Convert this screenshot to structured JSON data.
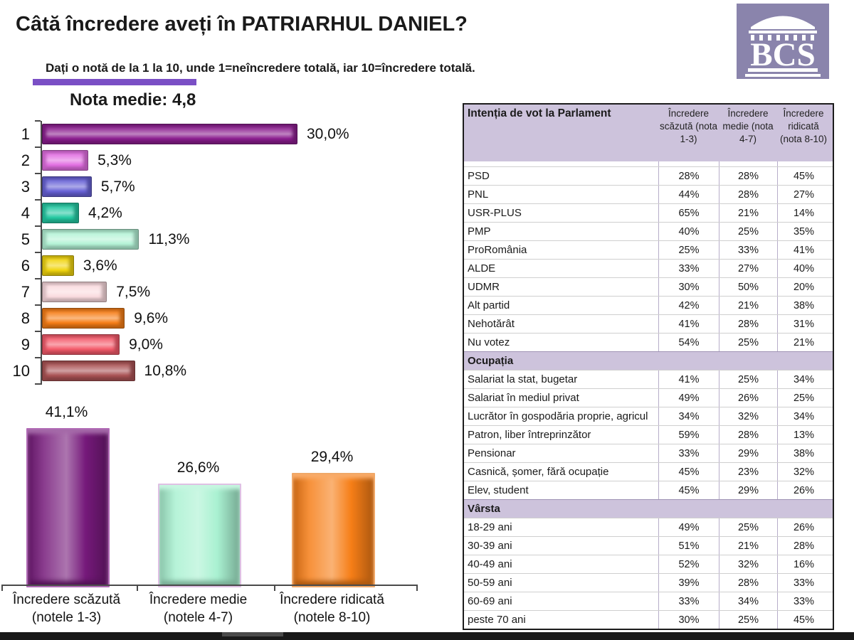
{
  "title": "Câtă încredere aveți în PATRIARHUL DANIEL?",
  "subtitle": "Dați o notă de la 1 la 10, unde 1=neîncredere totală, iar 10=încredere totală.",
  "accent_color": "#7A4FC5",
  "logo_text": "BCS",
  "average_note": "Nota medie: 4,8",
  "chart_data": [
    {
      "type": "bar",
      "orientation": "horizontal",
      "title": "Nota medie: 4,8",
      "categories": [
        "1",
        "2",
        "3",
        "4",
        "5",
        "6",
        "7",
        "8",
        "9",
        "10"
      ],
      "values": [
        30.0,
        5.3,
        5.7,
        4.2,
        11.3,
        3.6,
        7.5,
        9.6,
        9.0,
        10.8
      ],
      "labels": [
        "30,0%",
        "5,3%",
        "5,7%",
        "4,2%",
        "11,3%",
        "3,6%",
        "7,5%",
        "9,6%",
        "9,0%",
        "10,8%"
      ],
      "colors": [
        "#8B1E8F",
        "#E26FE2",
        "#6862D6",
        "#25C9A2",
        "#B4F3D6",
        "#F1D50F",
        "#FADBDF",
        "#F67E17",
        "#F45B6B",
        "#AA5355"
      ],
      "xlim": [
        0,
        32
      ],
      "grid": false
    },
    {
      "type": "bar",
      "orientation": "vertical",
      "categories": [
        [
          "Încredere scăzută",
          "(notele 1-3)"
        ],
        [
          "Încredere medie",
          "(notele 4-7)"
        ],
        [
          "Încredere ridicată",
          "(notele 8-10)"
        ]
      ],
      "values": [
        41.1,
        26.6,
        29.4
      ],
      "labels": [
        "41,1%",
        "26,6%",
        "29,4%"
      ],
      "colors": [
        "#75197A",
        "#A9F1D1",
        "#F67E17"
      ],
      "border_colors": [
        "#B06AB5",
        "#DFC0E4",
        "#F0A868"
      ],
      "ylim": [
        0,
        45
      ],
      "grid": false
    },
    {
      "type": "table",
      "header": {
        "label": "Intenția de vot la Parlament",
        "cols": [
          "Încredere scăzută (nota 1-3)",
          "Încredere medie (nota 4-7)",
          "Încredere ridicată (nota 8-10)"
        ]
      },
      "sections": [
        {
          "name": "",
          "rows": [
            [
              "PSD",
              "28%",
              "28%",
              "45%"
            ],
            [
              "PNL",
              "44%",
              "28%",
              "27%"
            ],
            [
              "USR-PLUS",
              "65%",
              "21%",
              "14%"
            ],
            [
              "PMP",
              "40%",
              "25%",
              "35%"
            ],
            [
              "ProRomânia",
              "25%",
              "33%",
              "41%"
            ],
            [
              "ALDE",
              "33%",
              "27%",
              "40%"
            ],
            [
              "UDMR",
              "30%",
              "50%",
              "20%"
            ],
            [
              "Alt partid",
              "42%",
              "21%",
              "38%"
            ],
            [
              "Nehotărât",
              "41%",
              "28%",
              "31%"
            ],
            [
              "Nu votez",
              "54%",
              "25%",
              "21%"
            ]
          ]
        },
        {
          "name": "Ocupația",
          "rows": [
            [
              "Salariat la stat, bugetar",
              "41%",
              "25%",
              "34%"
            ],
            [
              "Salariat în mediul privat",
              "49%",
              "26%",
              "25%"
            ],
            [
              "Lucrător în gospodăria proprie, agricul",
              "34%",
              "32%",
              "34%"
            ],
            [
              "Patron, liber întreprinzător",
              "59%",
              "28%",
              "13%"
            ],
            [
              "Pensionar",
              "33%",
              "29%",
              "38%"
            ],
            [
              "Casnică, șomer, fără ocupație",
              "45%",
              "23%",
              "32%"
            ],
            [
              "Elev, student",
              "45%",
              "29%",
              "26%"
            ]
          ]
        },
        {
          "name": "Vârsta",
          "rows": [
            [
              "18-29 ani",
              "49%",
              "25%",
              "26%"
            ],
            [
              "30-39 ani",
              "51%",
              "21%",
              "28%"
            ],
            [
              "40-49 ani",
              "52%",
              "32%",
              "16%"
            ],
            [
              "50-59 ani",
              "39%",
              "28%",
              "33%"
            ],
            [
              "60-69 ani",
              "33%",
              "34%",
              "33%"
            ],
            [
              "peste 70 ani",
              "30%",
              "25%",
              "45%"
            ]
          ]
        }
      ]
    }
  ]
}
